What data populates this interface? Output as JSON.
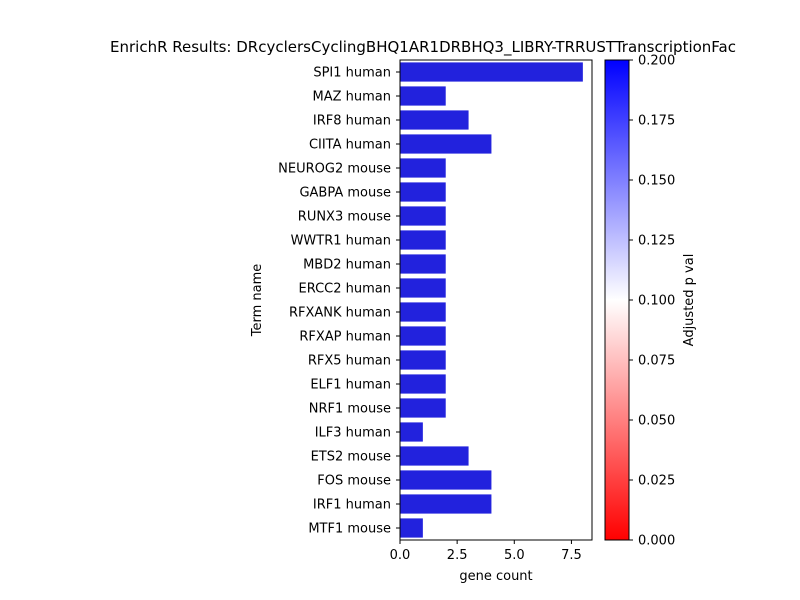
{
  "chart_data": {
    "type": "bar",
    "orientation": "horizontal",
    "title": "EnrichR Results: DRcyclersCyclingBHQ1AR1DRBHQ3_LIBRY-TRRUSTTranscriptionFac",
    "xlabel": "gene count",
    "ylabel": "Term name",
    "xlim": [
      0,
      8.4
    ],
    "xticks": [
      0.0,
      2.5,
      5.0,
      7.5
    ],
    "xtick_labels": [
      "0.0",
      "2.5",
      "5.0",
      "7.5"
    ],
    "categories": [
      "SPI1 human",
      "MAZ human",
      "IRF8 human",
      "CIITA human",
      "NEUROG2 mouse",
      "GABPA mouse",
      "RUNX3 mouse",
      "WWTR1 human",
      "MBD2 human",
      "ERCC2 human",
      "RFXANK human",
      "RFXAP human",
      "RFX5 human",
      "ELF1 human",
      "NRF1 mouse",
      "ILF3 human",
      "ETS2 mouse",
      "FOS mouse",
      "IRF1 human",
      "MTF1 mouse"
    ],
    "values": [
      8,
      2,
      3,
      4,
      2,
      2,
      2,
      2,
      2,
      2,
      2,
      2,
      2,
      2,
      2,
      1,
      3,
      4,
      4,
      1
    ],
    "bar_color": "#2222dd",
    "colorbar": {
      "label": "Adjusted p val",
      "range": [
        0.0,
        0.2
      ],
      "ticks": [
        0.0,
        0.025,
        0.05,
        0.075,
        0.1,
        0.125,
        0.15,
        0.175,
        0.2
      ],
      "tick_labels": [
        "0.000",
        "0.025",
        "0.050",
        "0.075",
        "0.100",
        "0.125",
        "0.150",
        "0.175",
        "0.200"
      ],
      "colors": [
        "#ff0000",
        "#ffffff",
        "#0000ff"
      ]
    },
    "grid": false,
    "legend": "none"
  }
}
